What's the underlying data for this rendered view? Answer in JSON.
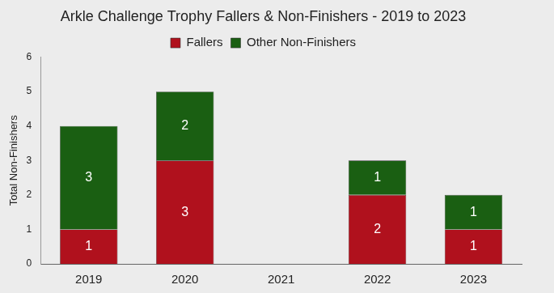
{
  "chart_data": {
    "type": "bar",
    "title": "Arkle Challenge Trophy Fallers & Non-Finishers - 2019 to 2023",
    "y_label": "Total Non-Finishers",
    "categories": [
      "2019",
      "2020",
      "2021",
      "2022",
      "2023"
    ],
    "series": [
      {
        "name": "Fallers",
        "color": "#b0111d",
        "values": [
          1,
          3,
          null,
          2,
          1
        ]
      },
      {
        "name": "Other Non-Finishers",
        "color": "#1a5f12",
        "values": [
          3,
          2,
          null,
          1,
          1
        ]
      }
    ],
    "ylim": [
      0,
      6
    ],
    "yticks": [
      0,
      1,
      2,
      3,
      4,
      5,
      6
    ],
    "stacked": true,
    "data_labels": true,
    "grid": false,
    "legend": "top"
  }
}
